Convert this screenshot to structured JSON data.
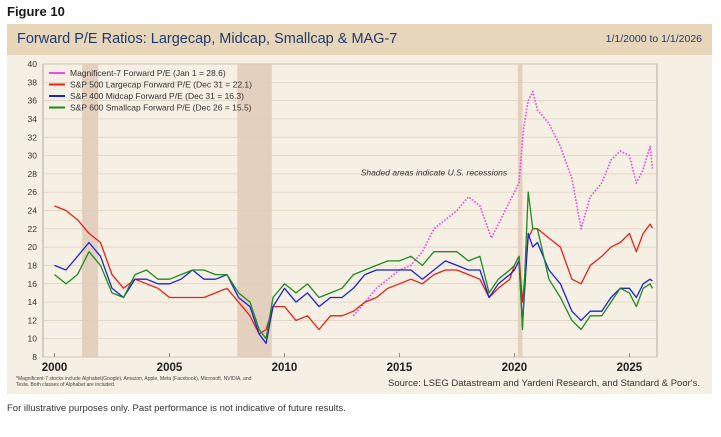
{
  "figure_label": "Figure 10",
  "header": {
    "title": "Forward P/E Ratios: Largecap, Midcap, Smallcap & MAG-7",
    "date_range": "1/1/2000 to 1/1/2026"
  },
  "footnote": "*Magnificent-7 stocks include Alphabet(Google), Amazon, Apple, Meta (Facebook), Microsoft, NVIDIA, and Tesla. Both classes of Alphabet are included.",
  "source": "Source: LSEG Datastream and Yardeni Research, and Standard & Poor's.",
  "disclaimer": "For illustrative purposes only. Past performance is not indicative of future results.",
  "chart_data": {
    "type": "line",
    "annotation": "Shaded areas indicate U.S. recessions",
    "xlim": [
      1999.5,
      2026.2
    ],
    "ylim": [
      8,
      40
    ],
    "yticks": [
      8,
      10,
      12,
      14,
      16,
      18,
      20,
      22,
      24,
      26,
      28,
      30,
      32,
      34,
      36,
      38,
      40
    ],
    "xticks": [
      2000,
      2005,
      2010,
      2015,
      2020,
      2025
    ],
    "x_tick_labels": [
      "2000",
      "2005",
      "2010",
      "2015",
      "2020",
      "2025"
    ],
    "grid": true,
    "legend_position": "top-left",
    "recessions": [
      [
        2001.2,
        2001.9
      ],
      [
        2007.95,
        2009.45
      ],
      [
        2020.15,
        2020.35
      ]
    ],
    "series": [
      {
        "name": "Magnificent-7 Forward P/E (Jan 1 = 28.6)",
        "color": "#e84ce0",
        "style": "dotted",
        "x": [
          2013.0,
          2013.5,
          2014.0,
          2014.5,
          2015.0,
          2015.5,
          2016.0,
          2016.5,
          2017.0,
          2017.5,
          2018.0,
          2018.5,
          2019.0,
          2019.5,
          2020.0,
          2020.2,
          2020.4,
          2020.6,
          2020.8,
          2021.0,
          2021.5,
          2022.0,
          2022.5,
          2022.9,
          2023.3,
          2023.8,
          2024.2,
          2024.6,
          2025.0,
          2025.3,
          2025.6,
          2025.9,
          2026.0
        ],
        "y": [
          12.5,
          14.0,
          15.5,
          16.5,
          17.5,
          18.0,
          19.5,
          22.0,
          23.0,
          24.0,
          25.5,
          24.5,
          21.0,
          23.5,
          26.0,
          27.0,
          33.0,
          36.0,
          37.0,
          35.0,
          33.5,
          31.0,
          27.5,
          22.0,
          25.5,
          27.0,
          29.5,
          30.5,
          30.0,
          27.0,
          28.5,
          31.0,
          28.6
        ]
      },
      {
        "name": "S&P 500 Largecap Forward P/E (Dec 31 = 22.1)",
        "color": "#e8211b",
        "style": "solid",
        "x": [
          2000.0,
          2000.5,
          2001.0,
          2001.5,
          2002.0,
          2002.5,
          2003.0,
          2003.5,
          2004.0,
          2004.5,
          2005.0,
          2005.5,
          2006.0,
          2006.5,
          2007.0,
          2007.5,
          2008.0,
          2008.5,
          2008.9,
          2009.2,
          2009.5,
          2010.0,
          2010.5,
          2011.0,
          2011.5,
          2012.0,
          2012.5,
          2013.0,
          2013.5,
          2014.0,
          2014.5,
          2015.0,
          2015.5,
          2016.0,
          2016.5,
          2017.0,
          2017.5,
          2018.0,
          2018.5,
          2018.9,
          2019.3,
          2019.8,
          2020.0,
          2020.2,
          2020.35,
          2020.6,
          2020.8,
          2021.0,
          2021.5,
          2022.0,
          2022.5,
          2022.9,
          2023.3,
          2023.8,
          2024.2,
          2024.6,
          2025.0,
          2025.3,
          2025.6,
          2025.9,
          2026.0
        ],
        "y": [
          24.5,
          24.0,
          23.0,
          21.5,
          20.5,
          17.0,
          15.5,
          16.5,
          16.0,
          15.5,
          14.5,
          14.5,
          14.5,
          14.5,
          15.0,
          15.5,
          14.0,
          12.5,
          10.5,
          11.0,
          13.5,
          13.5,
          12.0,
          12.5,
          11.0,
          12.5,
          12.5,
          13.0,
          14.0,
          14.5,
          15.5,
          16.0,
          16.5,
          16.0,
          17.0,
          17.5,
          17.5,
          17.0,
          16.5,
          14.5,
          15.5,
          16.5,
          18.0,
          19.0,
          14.0,
          21.0,
          22.0,
          22.0,
          21.0,
          20.0,
          16.5,
          16.0,
          18.0,
          19.0,
          20.0,
          20.5,
          21.5,
          19.5,
          21.5,
          22.5,
          22.1
        ]
      },
      {
        "name": "S&P 400 Midcap Forward P/E (Dec 31 = 16.3)",
        "color": "#1a24d6",
        "style": "solid",
        "x": [
          2000.0,
          2000.5,
          2001.0,
          2001.5,
          2002.0,
          2002.5,
          2003.0,
          2003.5,
          2004.0,
          2004.5,
          2005.0,
          2005.5,
          2006.0,
          2006.5,
          2007.0,
          2007.5,
          2008.0,
          2008.5,
          2008.9,
          2009.2,
          2009.5,
          2010.0,
          2010.5,
          2011.0,
          2011.5,
          2012.0,
          2012.5,
          2013.0,
          2013.5,
          2014.0,
          2014.5,
          2015.0,
          2015.5,
          2016.0,
          2016.5,
          2017.0,
          2017.5,
          2018.0,
          2018.5,
          2018.9,
          2019.3,
          2019.8,
          2020.0,
          2020.2,
          2020.35,
          2020.6,
          2020.8,
          2021.0,
          2021.5,
          2022.0,
          2022.5,
          2022.9,
          2023.3,
          2023.8,
          2024.2,
          2024.6,
          2025.0,
          2025.3,
          2025.6,
          2025.9,
          2026.0
        ],
        "y": [
          18.0,
          17.5,
          19.0,
          20.5,
          19.0,
          15.5,
          14.5,
          16.5,
          16.5,
          16.0,
          16.0,
          16.5,
          17.5,
          16.5,
          16.5,
          17.0,
          14.5,
          13.5,
          10.5,
          9.5,
          13.5,
          15.5,
          14.0,
          15.0,
          13.5,
          14.5,
          14.5,
          15.5,
          17.0,
          17.5,
          17.5,
          17.5,
          17.5,
          16.5,
          17.5,
          18.5,
          18.0,
          17.5,
          17.5,
          14.5,
          16.0,
          17.0,
          17.5,
          18.5,
          11.5,
          21.5,
          20.0,
          20.5,
          17.5,
          16.0,
          13.0,
          12.0,
          13.0,
          13.0,
          14.5,
          15.5,
          15.5,
          14.5,
          16.0,
          16.5,
          16.3
        ]
      },
      {
        "name": "S&P 600 Smallcap Forward P/E (Dec 26 = 15.5)",
        "color": "#1f8a1f",
        "style": "solid",
        "x": [
          2000.0,
          2000.5,
          2001.0,
          2001.5,
          2002.0,
          2002.5,
          2003.0,
          2003.5,
          2004.0,
          2004.5,
          2005.0,
          2005.5,
          2006.0,
          2006.5,
          2007.0,
          2007.5,
          2008.0,
          2008.5,
          2008.9,
          2009.2,
          2009.5,
          2010.0,
          2010.5,
          2011.0,
          2011.5,
          2012.0,
          2012.5,
          2013.0,
          2013.5,
          2014.0,
          2014.5,
          2015.0,
          2015.5,
          2016.0,
          2016.5,
          2017.0,
          2017.5,
          2018.0,
          2018.5,
          2018.9,
          2019.3,
          2019.8,
          2020.0,
          2020.2,
          2020.35,
          2020.6,
          2020.8,
          2021.0,
          2021.5,
          2022.0,
          2022.5,
          2022.9,
          2023.3,
          2023.8,
          2024.2,
          2024.6,
          2025.0,
          2025.3,
          2025.6,
          2025.9,
          2026.0
        ],
        "y": [
          17.0,
          16.0,
          17.0,
          19.5,
          18.0,
          15.0,
          14.5,
          17.0,
          17.5,
          16.5,
          16.5,
          17.0,
          17.5,
          17.5,
          17.0,
          17.0,
          15.0,
          14.0,
          11.0,
          10.0,
          14.5,
          16.0,
          15.0,
          16.0,
          14.5,
          15.0,
          15.5,
          17.0,
          17.5,
          18.0,
          18.5,
          18.5,
          19.0,
          18.0,
          19.5,
          19.5,
          19.5,
          18.5,
          19.0,
          15.0,
          16.5,
          17.5,
          18.0,
          19.0,
          11.0,
          26.0,
          22.0,
          22.0,
          16.5,
          14.5,
          12.0,
          11.0,
          12.5,
          12.5,
          14.0,
          15.5,
          15.0,
          13.5,
          15.5,
          16.0,
          15.5
        ]
      }
    ]
  }
}
